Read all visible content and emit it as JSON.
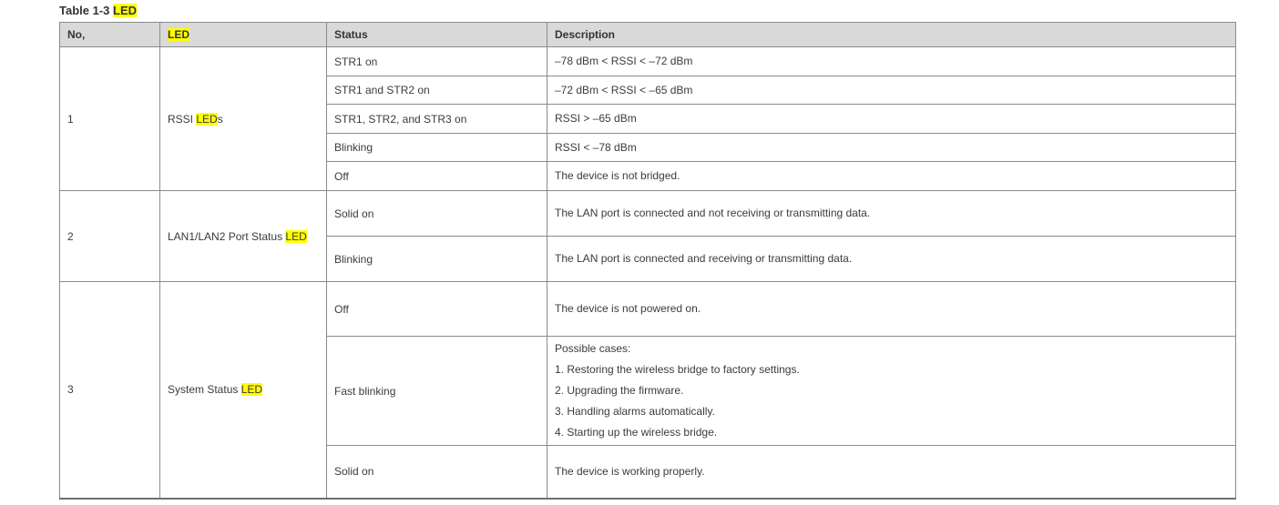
{
  "caption": {
    "segments": [
      {
        "text": "Table 1-3 ",
        "hl": false
      },
      {
        "text": "LED",
        "hl": true
      }
    ]
  },
  "table": {
    "headers": [
      {
        "key": "no",
        "segments": [
          {
            "text": "No,",
            "hl": false
          }
        ]
      },
      {
        "key": "led",
        "segments": [
          {
            "text": "LED",
            "hl": true
          }
        ]
      },
      {
        "key": "status",
        "segments": [
          {
            "text": "Status",
            "hl": false
          }
        ]
      },
      {
        "key": "description",
        "segments": [
          {
            "text": "Description",
            "hl": false
          }
        ]
      }
    ],
    "groups": [
      {
        "no": "1",
        "led_segments": [
          {
            "text": "RSSI ",
            "hl": false
          },
          {
            "text": "LED",
            "hl": true
          },
          {
            "text": "s",
            "hl": false
          }
        ],
        "rows": [
          {
            "status": "STR1 on",
            "desc": [
              "–78 dBm < RSSI < –72 dBm"
            ]
          },
          {
            "status": "STR1 and STR2 on",
            "desc": [
              "–72 dBm < RSSI < –65 dBm"
            ]
          },
          {
            "status": "STR1, STR2, and STR3 on",
            "desc": [
              "RSSI > –65 dBm"
            ]
          },
          {
            "status": "Blinking",
            "desc": [
              "RSSI < –78 dBm"
            ]
          },
          {
            "status": "Off",
            "desc": [
              "The device is not bridged."
            ]
          }
        ]
      },
      {
        "no": "2",
        "led_segments": [
          {
            "text": "LAN1/LAN2 Port Status ",
            "hl": false
          },
          {
            "text": "LED",
            "hl": true
          }
        ],
        "rows": [
          {
            "status": "Solid on",
            "desc": [
              "The LAN port is connected and not receiving or transmitting data."
            ]
          },
          {
            "status": "Blinking",
            "desc": [
              "The LAN port is connected and receiving or transmitting data."
            ]
          }
        ]
      },
      {
        "no": "3",
        "led_segments": [
          {
            "text": "System Status ",
            "hl": false
          },
          {
            "text": "LED",
            "hl": true
          }
        ],
        "rows": [
          {
            "status": "Off",
            "desc": [
              "The device is not powered on."
            ]
          },
          {
            "status": "Fast blinking",
            "desc": [
              "Possible cases:",
              "1. Restoring the wireless bridge to factory settings.",
              "2. Upgrading the firmware.",
              "3. Handling alarms automatically.",
              "4. Starting up the wireless bridge."
            ]
          },
          {
            "status": "Solid on",
            "desc": [
              "The device is working properly."
            ]
          }
        ]
      }
    ]
  },
  "colors": {
    "highlight": "#ffff00",
    "header_bg": "#d9d9d9",
    "border": "#8a8a8a",
    "text": "#3b3b3b"
  }
}
